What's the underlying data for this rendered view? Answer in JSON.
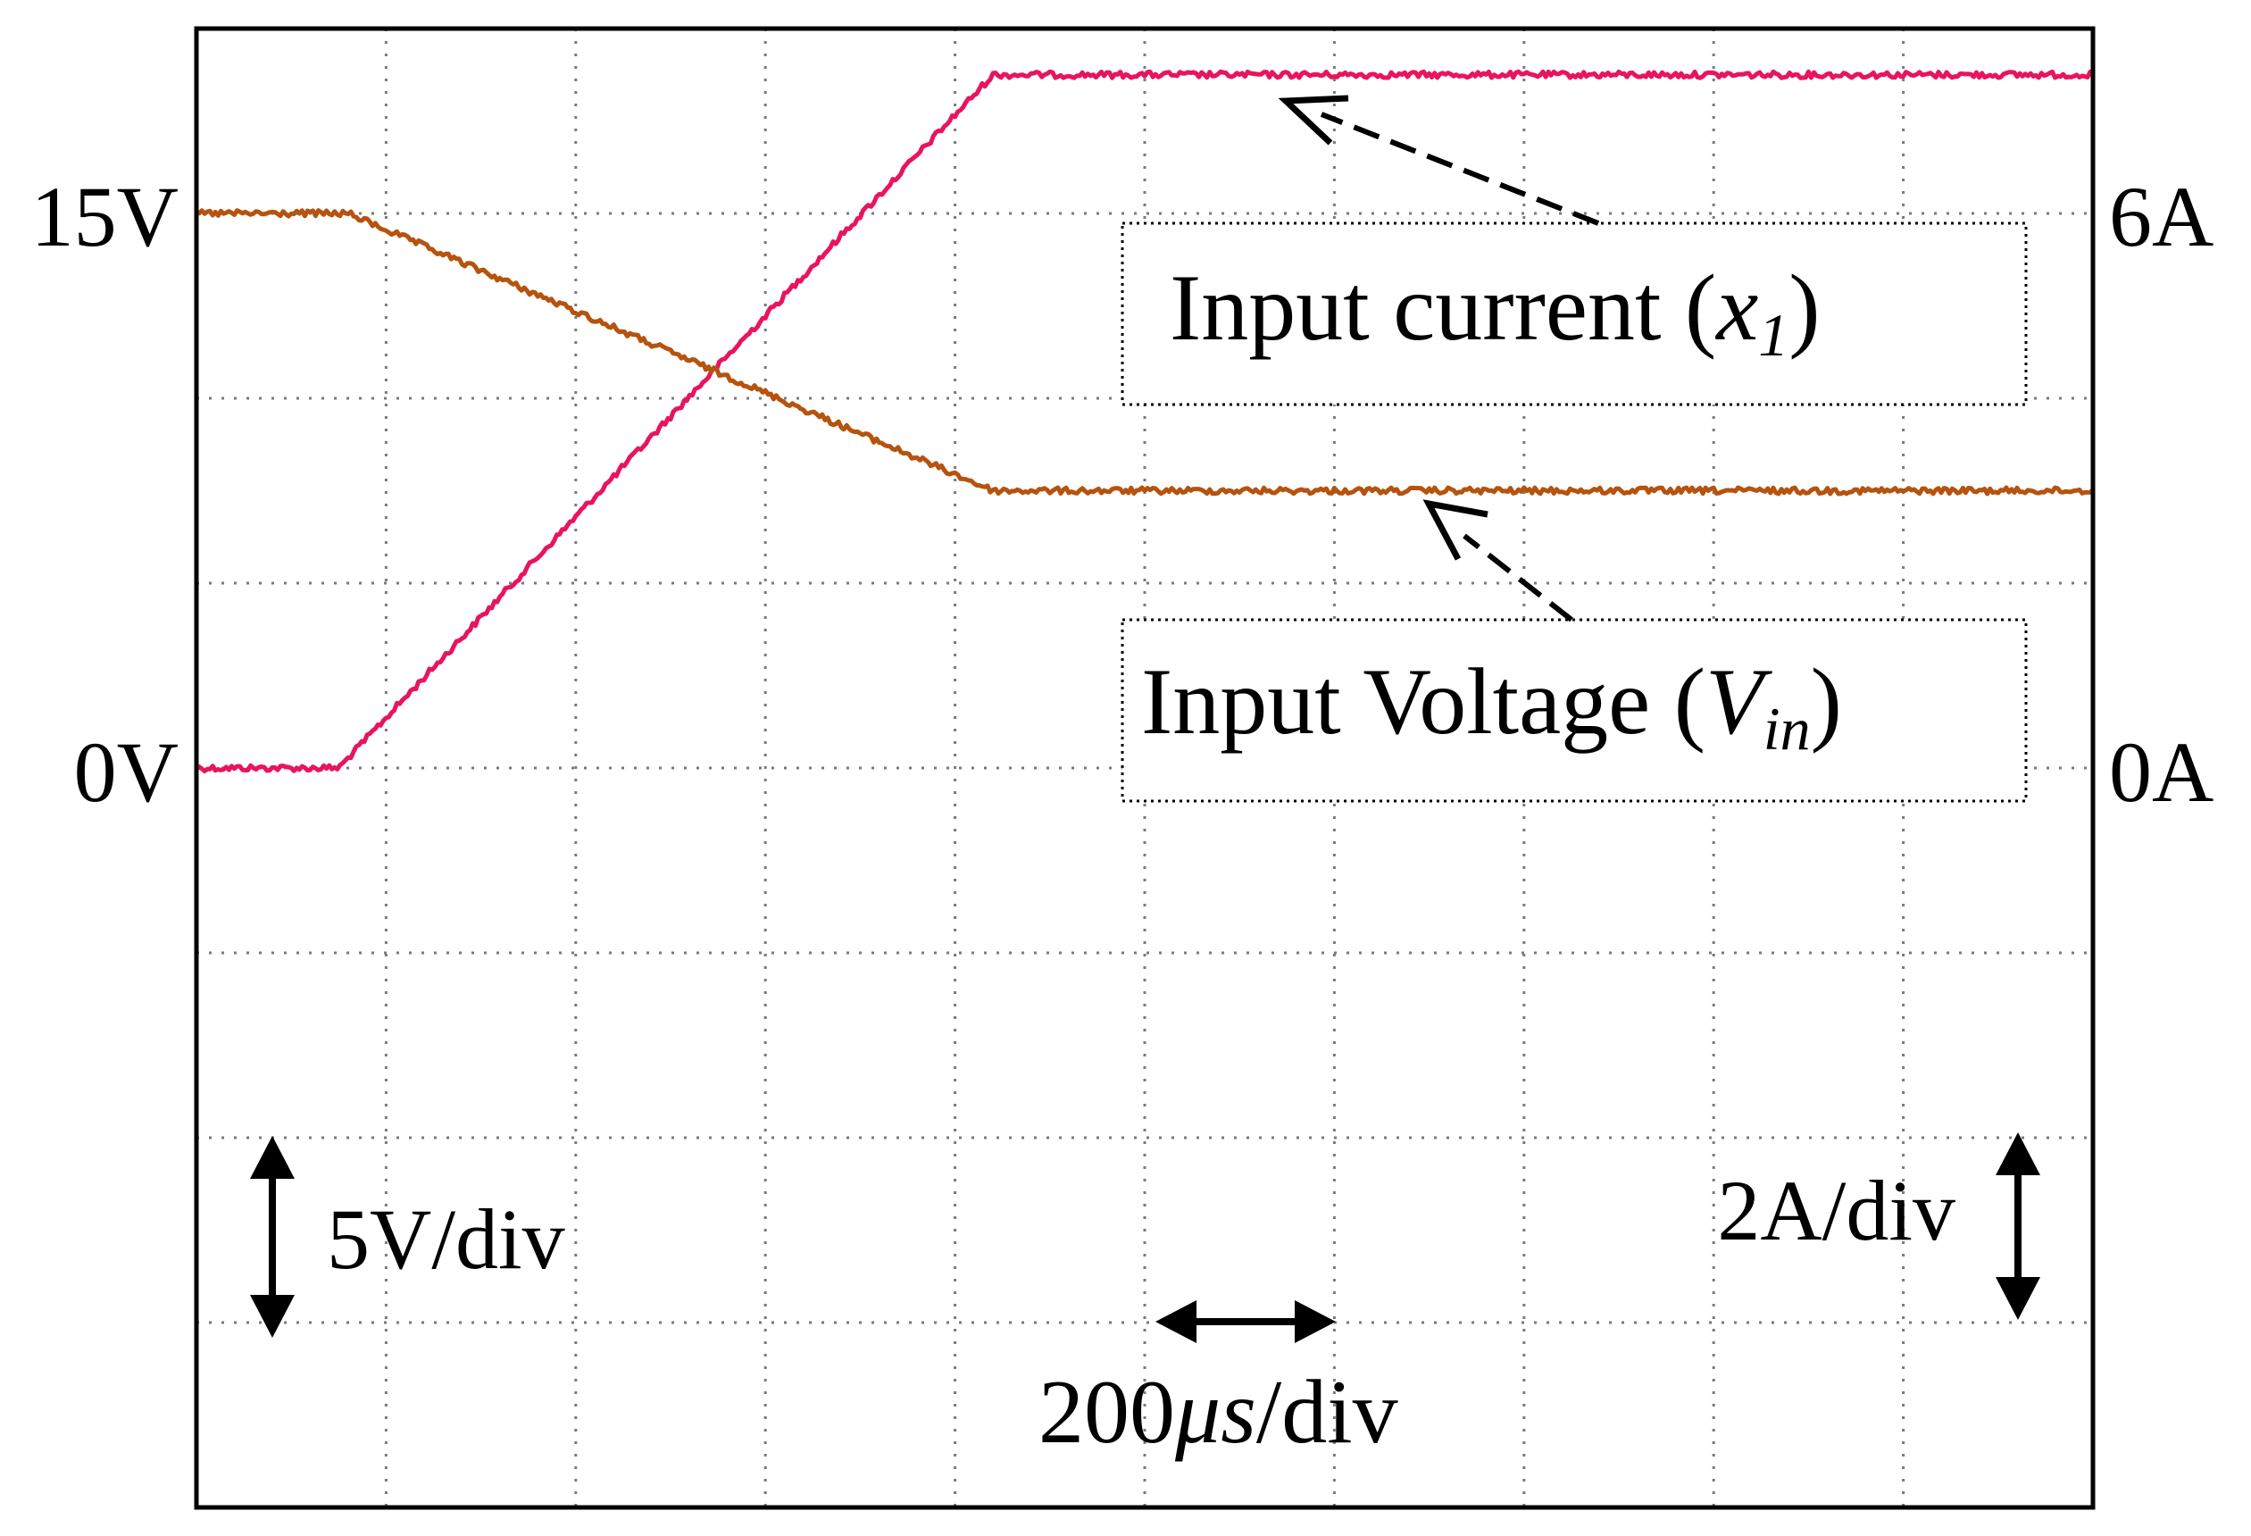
{
  "chart_data": {
    "type": "line",
    "title": "",
    "xlabel": "",
    "ylabel": "",
    "x_unit": "div",
    "xlim": [
      0,
      10
    ],
    "ylim_div": [
      -4,
      4
    ],
    "grid": true,
    "time_scale": "200μs/div",
    "left_axis": {
      "scale": "5V/div",
      "tick_labels": [
        {
          "text": "15V",
          "value_div": 3
        },
        {
          "text": "0V",
          "value_div": 0
        }
      ]
    },
    "right_axis": {
      "scale": "2A/div",
      "tick_labels": [
        {
          "text": "6A",
          "value_div": 3
        },
        {
          "text": "0A",
          "value_div": 0
        }
      ]
    },
    "series": [
      {
        "name": "Input current",
        "symbol": "x",
        "subscript": "1",
        "unit": "A",
        "color": "#e8155d",
        "x": [
          0,
          0.75,
          4.2,
          10
        ],
        "values": [
          0,
          0,
          7.5,
          7.5
        ]
      },
      {
        "name": "Input Voltage",
        "symbol": "V",
        "subscript": "in",
        "unit": "V",
        "color": "#b5530f",
        "x": [
          0,
          0.8,
          4.2,
          10
        ],
        "values": [
          15,
          15,
          7.5,
          7.5
        ]
      }
    ],
    "annotations": {
      "current_label": {
        "prefix": "Input current (",
        "symbol": "x",
        "subscript": "1",
        "suffix": ")"
      },
      "voltage_label": {
        "prefix": "Input Voltage (",
        "symbol": "V",
        "subscript": "in",
        "suffix": ")"
      },
      "time_label": {
        "number": "200",
        "mu": "μ",
        "s": "s",
        "rest": "/div"
      }
    }
  }
}
